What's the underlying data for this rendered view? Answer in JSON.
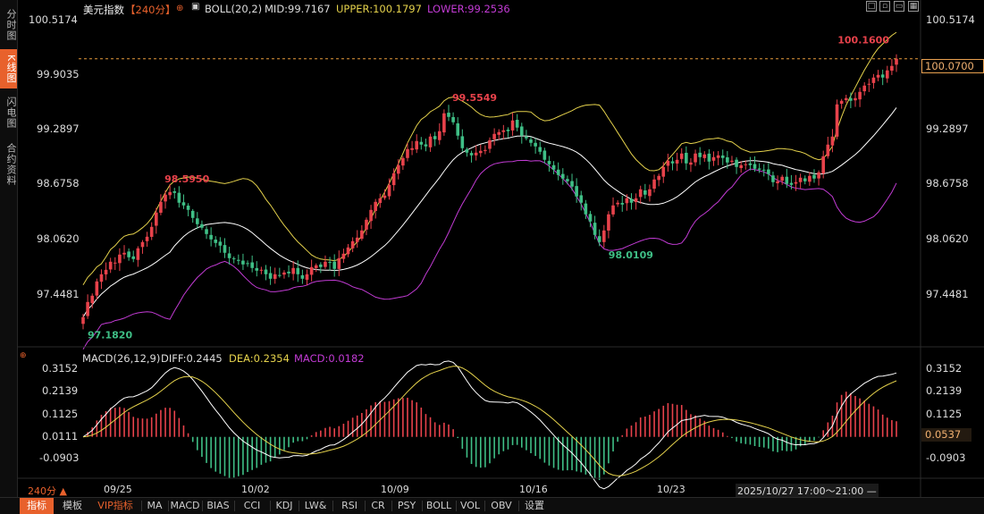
{
  "side_tabs": [
    {
      "label": "分时图",
      "active": false
    },
    {
      "label": "K线图",
      "active": true
    },
    {
      "label": "闪电图",
      "active": false
    },
    {
      "label": "合约资料",
      "active": false
    }
  ],
  "header": {
    "symbol": "美元指数",
    "period": "【240分】",
    "boll_name": "BOLL(20,2)",
    "mid": "MID:99.7167",
    "upper": "UPPER:100.1797",
    "lower": "LOWER:99.2536"
  },
  "macd_header": {
    "name": "MACD(26,12,9)",
    "diff": "DIFF:0.2445",
    "dea": "DEA:0.2354",
    "macd": "MACD:0.0182"
  },
  "price_axis": [
    "100.5174",
    "99.9035",
    "99.2897",
    "98.6758",
    "98.0620",
    "97.4481"
  ],
  "macd_axis": [
    "0.3152",
    "0.2139",
    "0.1125",
    "0.0111",
    "-0.0903"
  ],
  "current_price": "100.0700",
  "current_macd": "0.0537",
  "annotations": {
    "high1": "98.5950",
    "high2": "99.5549",
    "low2": "98.0109",
    "high3": "100.1600",
    "low1": "97.1820"
  },
  "x_labels": [
    "09/25",
    "10/02",
    "10/09",
    "10/16",
    "10/23"
  ],
  "period_label": "240分 ▲",
  "cursor_time": "2025/10/27 17:00～21:00 —",
  "bottom_buttons": [
    "指标",
    "模板",
    "VIP指标",
    "MA",
    "MACD",
    "BIAS",
    "CCI",
    "KDJ",
    "LW&",
    "RSI",
    "CR",
    "PSY",
    "BOLL",
    "VOL",
    "OBV",
    "设置"
  ],
  "colors": {
    "up": "#e8424b",
    "down": "#3fbf86",
    "mid": "#ffffff",
    "upper": "#e5d24c",
    "lower": "#c23bd4",
    "accent": "#e8612c"
  },
  "chart_data": [
    {
      "type": "candlestick",
      "title": "美元指数 240分",
      "ylim": [
        97.1,
        100.52
      ],
      "x_ticks": [
        "09/25",
        "10/02",
        "10/09",
        "10/16",
        "10/23"
      ],
      "overlays": [
        "BOLL(20,2) MID",
        "UPPER",
        "LOWER"
      ],
      "key_levels": {
        "first_low": 97.182,
        "high_0925": 98.595,
        "high_1009": 99.5549,
        "low_1016": 98.0109,
        "recent_high": 100.16,
        "last": 100.07
      },
      "closes": [
        97.18,
        97.35,
        97.42,
        97.58,
        97.66,
        97.71,
        97.8,
        97.79,
        97.88,
        97.9,
        97.85,
        97.83,
        97.95,
        98.02,
        98.08,
        98.19,
        98.35,
        98.47,
        98.55,
        98.58,
        98.57,
        98.46,
        98.43,
        98.38,
        98.29,
        98.22,
        98.18,
        98.11,
        98.05,
        98.01,
        97.98,
        97.9,
        97.84,
        97.83,
        97.81,
        97.77,
        97.78,
        97.73,
        97.7,
        97.71,
        97.66,
        97.61,
        97.66,
        97.65,
        97.68,
        97.67,
        97.73,
        97.66,
        97.61,
        97.66,
        97.74,
        97.76,
        97.74,
        97.8,
        97.79,
        97.72,
        97.84,
        97.89,
        97.96,
        98.03,
        98.07,
        98.15,
        98.27,
        98.38,
        98.47,
        98.51,
        98.54,
        98.66,
        98.79,
        98.88,
        98.96,
        99.06,
        99.07,
        99.15,
        99.11,
        99.09,
        99.2,
        99.17,
        99.26,
        99.46,
        99.42,
        99.36,
        99.21,
        99.07,
        99.02,
        98.99,
        99.02,
        99.04,
        99.05,
        99.16,
        99.23,
        99.25,
        99.27,
        99.26,
        99.38,
        99.3,
        99.21,
        99.18,
        99.13,
        99.09,
        99.03,
        98.94,
        98.89,
        98.83,
        98.77,
        98.73,
        98.7,
        98.64,
        98.53,
        98.46,
        98.33,
        98.25,
        98.1,
        98.02,
        98.15,
        98.33,
        98.43,
        98.46,
        98.44,
        98.51,
        98.46,
        98.51,
        98.61,
        98.55,
        98.61,
        98.72,
        98.76,
        98.86,
        98.93,
        98.9,
        98.94,
        99.01,
        98.9,
        98.91,
        99.01,
        98.97,
        99.0,
        98.92,
        98.97,
        98.99,
        98.96,
        98.91,
        98.93,
        98.86,
        98.88,
        98.89,
        98.88,
        98.84,
        98.83,
        98.82,
        98.78,
        98.69,
        98.7,
        98.75,
        98.67,
        98.66,
        98.69,
        98.74,
        98.7,
        98.76,
        98.73,
        98.8,
        98.98,
        99.11,
        99.2,
        99.56,
        99.6,
        99.63,
        99.6,
        99.63,
        99.7,
        99.77,
        99.79,
        99.86,
        99.89,
        99.86,
        99.94,
        99.99,
        100.07
      ]
    },
    {
      "type": "bar",
      "title": "MACD(26,12,9)",
      "ylim": [
        -0.15,
        0.35
      ],
      "series": [
        {
          "name": "DIFF",
          "last": 0.2445
        },
        {
          "name": "DEA",
          "last": 0.2354
        },
        {
          "name": "MACD",
          "last": 0.0182
        }
      ]
    }
  ]
}
